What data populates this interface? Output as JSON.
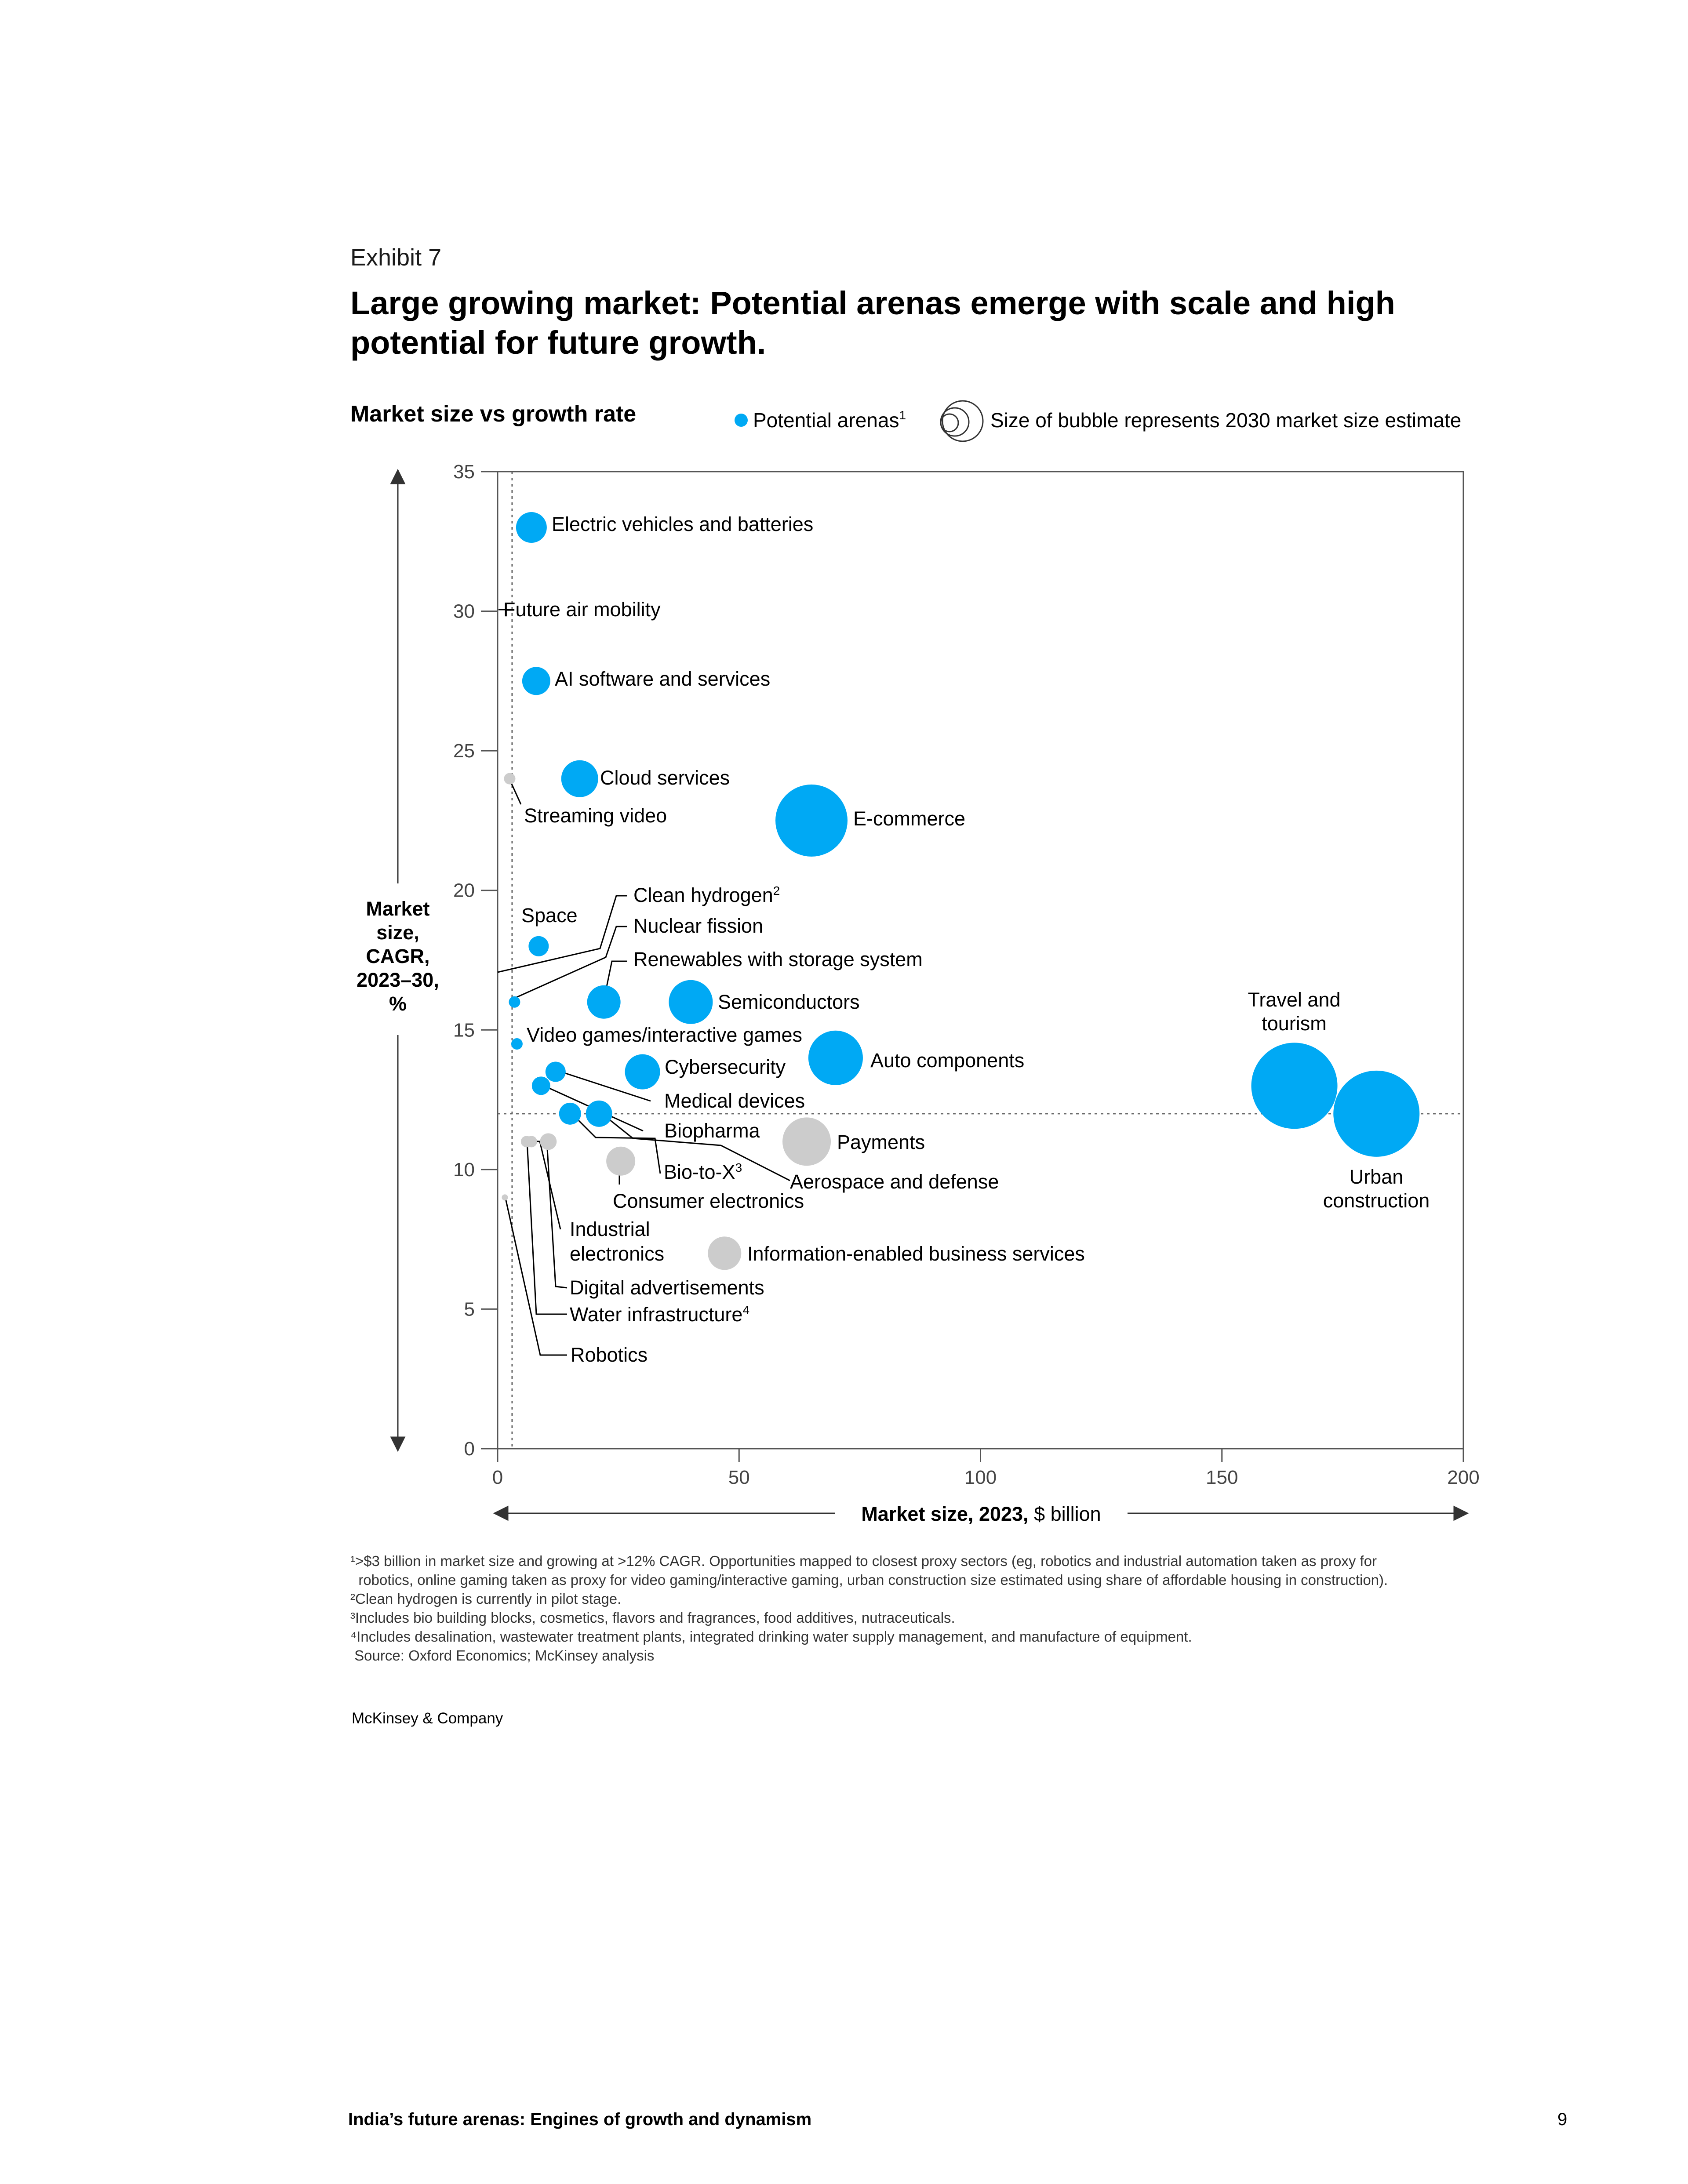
{
  "header": {
    "exhibit": "Exhibit 7",
    "title": "Large growing market: Potential arenas emerge with scale and high potential for future growth."
  },
  "legend": {
    "subtitle": "Market size vs growth rate",
    "potential_label": "Potential arenas",
    "potential_sup": "1",
    "size_label": "Size of bubble represents 2030 market size estimate"
  },
  "colors": {
    "potential": "#00A9F4",
    "other": "#CCCCCC",
    "axis": "#555555"
  },
  "chart_data": {
    "type": "scatter",
    "xlabel_bold": "Market size, 2023,",
    "xlabel_rest": " $ billion",
    "ylabel": [
      "Market",
      "size,",
      "CAGR,",
      "2023–30,",
      "%"
    ],
    "xlim": [
      0,
      200
    ],
    "ylim": [
      0,
      35
    ],
    "x_ticks": [
      "0",
      "50",
      "100",
      "150",
      "200"
    ],
    "y_ticks": [
      "0",
      "5",
      "10",
      "15",
      "20",
      "25",
      "30",
      "35"
    ],
    "reference_lines": {
      "x": 3,
      "y": 12
    },
    "points": [
      {
        "label": [
          "Electric vehicles and batteries"
        ],
        "x": 7,
        "y": 33,
        "r": 35,
        "potential": true
      },
      {
        "label": [
          "Future air mobility"
        ],
        "x": 1,
        "y": 30,
        "r": 0,
        "potential": false
      },
      {
        "label": [
          "AI software and services"
        ],
        "x": 8,
        "y": 27.5,
        "r": 32,
        "potential": true
      },
      {
        "label": [
          "Cloud services"
        ],
        "x": 17,
        "y": 24,
        "r": 42,
        "potential": true
      },
      {
        "label": [
          "Streaming video"
        ],
        "x": 2.5,
        "y": 24,
        "r": 13,
        "potential": false
      },
      {
        "label": [
          "E-commerce"
        ],
        "x": 65,
        "y": 22.5,
        "r": 82,
        "potential": true
      },
      {
        "label": [
          "Space"
        ],
        "x": 8.5,
        "y": 18,
        "r": 23,
        "potential": true
      },
      {
        "label": [
          "Clean hydrogen"
        ],
        "sup": "2",
        "x": 1,
        "y": 17,
        "r": 0,
        "potential": false
      },
      {
        "label": [
          "Nuclear fission"
        ],
        "x": 3.5,
        "y": 16,
        "r": 13,
        "potential": true
      },
      {
        "label": [
          "Renewables with storage system"
        ],
        "x": 22,
        "y": 16,
        "r": 38,
        "potential": true
      },
      {
        "label": [
          "Semiconductors"
        ],
        "x": 40,
        "y": 16,
        "r": 50,
        "potential": true
      },
      {
        "label": [
          "Video games/interactive games"
        ],
        "x": 4,
        "y": 14.5,
        "r": 13,
        "potential": true
      },
      {
        "label": [
          "Cybersecurity"
        ],
        "x": 30,
        "y": 13.5,
        "r": 40,
        "potential": true
      },
      {
        "label": [
          "Auto components"
        ],
        "x": 70,
        "y": 14,
        "r": 62,
        "potential": true
      },
      {
        "label": [
          "Medical devices"
        ],
        "x": 12,
        "y": 13.5,
        "r": 23,
        "potential": true
      },
      {
        "label": [
          "Biopharma"
        ],
        "x": 9,
        "y": 13,
        "r": 21,
        "potential": true
      },
      {
        "label": [
          "Payments"
        ],
        "x": 64,
        "y": 11,
        "r": 55,
        "potential": false
      },
      {
        "label": [
          "Bio-to-X"
        ],
        "sup": "3",
        "x": 15,
        "y": 12,
        "r": 25,
        "potential": true
      },
      {
        "label": [
          "Aerospace and defense"
        ],
        "x": 21,
        "y": 12,
        "r": 30,
        "potential": true
      },
      {
        "label": [
          "Consumer electronics"
        ],
        "x": 25.5,
        "y": 10.3,
        "r": 33,
        "potential": false
      },
      {
        "label": [
          "Travel and",
          "tourism"
        ],
        "x": 165,
        "y": 13,
        "r": 98,
        "potential": true
      },
      {
        "label": [
          "Urban",
          "construction"
        ],
        "x": 182,
        "y": 12,
        "r": 98,
        "potential": true
      },
      {
        "label": [
          "Industrial",
          "electronics"
        ],
        "x": 6,
        "y": 11,
        "r": 13,
        "potential": false
      },
      {
        "label": [
          "Information-enabled business services"
        ],
        "x": 47,
        "y": 7,
        "r": 38,
        "potential": false
      },
      {
        "label": [
          "Digital advertisements"
        ],
        "x": 10.5,
        "y": 11,
        "r": 19,
        "potential": false
      },
      {
        "label": [
          "Water infrastructure"
        ],
        "sup": "4",
        "x": 7,
        "y": 11,
        "r": 13,
        "potential": false
      },
      {
        "label": [
          "Robotics"
        ],
        "x": 1.5,
        "y": 9,
        "r": 7,
        "potential": false
      }
    ]
  },
  "footnotes": [
    "¹>$3 billion in market size and growing at >12% CAGR. Opportunities mapped to closest proxy sectors (eg, robotics and industrial automation taken as proxy for",
    "  robotics, online gaming taken as proxy for video gaming/interactive gaming, urban construction size estimated using share of affordable housing in construction).",
    "²Clean hydrogen is currently in pilot stage.",
    "³Includes bio building blocks, cosmetics, flavors and fragrances, food additives, nutraceuticals.",
    "⁴Includes desalination, wastewater treatment plants, integrated drinking water supply management, and manufacture of equipment.",
    " Source: Oxford Economics; McKinsey analysis"
  ],
  "brand": "McKinsey & Company",
  "footer": {
    "running_title": "India’s future arenas: Engines of growth and dynamism",
    "page": "9"
  }
}
